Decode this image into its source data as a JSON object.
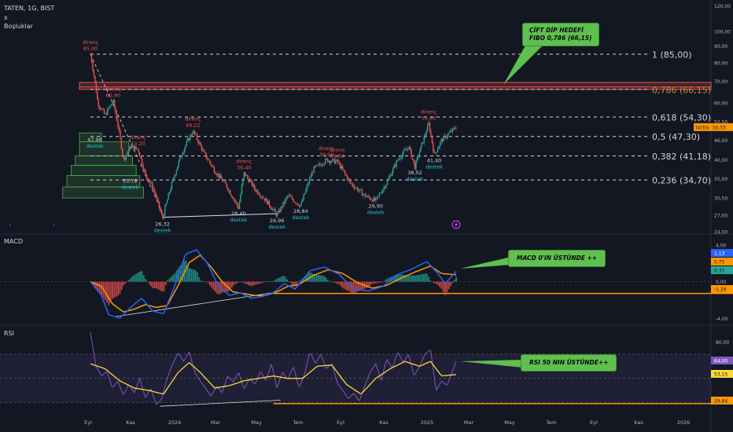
{
  "header": {
    "symbol_line": "TATEN, 1G, BIST",
    "close_x": "x",
    "sub_label": "Boşluklar",
    "macd_label": "MACD",
    "rsi_label": "RSI"
  },
  "colors": {
    "background": "#131722",
    "candle_up": "#26a69a",
    "candle_down": "#ef5350",
    "macd_line": "#2962ff",
    "signal_line": "#ff9800",
    "rsi_line": "#7e57c2",
    "rsi_ma": "#fdd835",
    "callout": "#5fbf4f",
    "support_line": "#e0e0e0"
  },
  "callouts": {
    "fib_target": [
      "ÇİFT DİP HEDEFİ",
      "FIBO 0,786 (66,15)"
    ],
    "macd": "MACD 0'IN ÜSTÜNDE ++",
    "rsi": "RSI 50 NIN ÜSTÜNDE++"
  },
  "chart_data": [
    {
      "type": "candlestick",
      "panel": "price",
      "symbol": "TATEN",
      "timeframe": "1G",
      "exchange": "BIST",
      "last_price": 50.55,
      "last_price_label": "50,55",
      "x_ticks": [
        "Eyl",
        "Kas",
        "2024",
        "Mar",
        "May",
        "Tem",
        "Eyl",
        "Kas",
        "2025",
        "Mar",
        "May",
        "Tem",
        "Eyl",
        "Kas",
        "2026"
      ],
      "y_scale": "log",
      "y_ticks": [
        "120,00",
        "100,00",
        "90,00",
        "80,00",
        "70,00",
        "60,00",
        "52,50",
        "46,00",
        "40,00",
        "35,00",
        "30,50",
        "27,00",
        "24,00"
      ],
      "ylim": [
        24,
        125
      ],
      "fib_levels": [
        {
          "ratio": "1",
          "price": 85.0,
          "label": "1 (85,00)"
        },
        {
          "ratio": "0,786",
          "price": 66.15,
          "label": "0,786 (66,15)"
        },
        {
          "ratio": "0,618",
          "price": 54.3,
          "label": "0,618 (54,30)"
        },
        {
          "ratio": "0,5",
          "price": 47.3,
          "label": "0,5 (47,30)"
        },
        {
          "ratio": "0,382",
          "price": 41.18,
          "label": "0,382 (41,18)"
        },
        {
          "ratio": "0,236",
          "price": 34.7,
          "label": "0,236 (34,70)"
        }
      ],
      "resistance_band": [
        66.15,
        69.5
      ],
      "gap_boxes": [
        45.5,
        41.18,
        38.5,
        35.78,
        33.0,
        30.5
      ],
      "annotations": [
        {
          "kind": "direnc",
          "label": "direnç",
          "value": "85,00",
          "price": 85.0,
          "t": 0.0
        },
        {
          "kind": "direnc",
          "label": "direnç",
          "value": "60,90",
          "price": 60.9,
          "t": 0.062
        },
        {
          "kind": "direnc",
          "label": "direnç",
          "value": "43,20",
          "price": 43.2,
          "t": 0.13
        },
        {
          "kind": "direnc",
          "label": "direnç",
          "value": "49,22",
          "price": 49.22,
          "t": 0.28
        },
        {
          "kind": "direnc",
          "label": "direnç",
          "value": "36,40",
          "price": 36.4,
          "t": 0.42
        },
        {
          "kind": "direnc",
          "label": "direnç",
          "value": "39,98",
          "price": 39.98,
          "t": 0.645
        },
        {
          "kind": "direnc",
          "label": "direnç",
          "value": "39,50",
          "price": 39.5,
          "t": 0.675
        },
        {
          "kind": "direnc",
          "label": "direnç",
          "value": "51,80",
          "price": 51.8,
          "t": 0.925
        },
        {
          "kind": "destek",
          "label": "destek",
          "value": "47,96",
          "price": 47.96,
          "t": 0.012
        },
        {
          "kind": "destek",
          "label": "destek",
          "value": "35,78",
          "price": 35.78,
          "t": 0.108
        },
        {
          "kind": "destek",
          "label": "destek",
          "value": "26,32",
          "price": 26.32,
          "t": 0.197
        },
        {
          "kind": "destek",
          "label": "destek",
          "value": "28,40",
          "price": 28.4,
          "t": 0.405
        },
        {
          "kind": "destek",
          "label": "destek",
          "value": "26,96",
          "price": 26.96,
          "t": 0.51
        },
        {
          "kind": "destek",
          "label": "destek",
          "value": "28,84",
          "price": 28.84,
          "t": 0.575
        },
        {
          "kind": "destek",
          "label": "destek",
          "value": "29,90",
          "price": 29.9,
          "t": 0.78
        },
        {
          "kind": "destek",
          "label": "destek",
          "value": "38,02",
          "price": 38.02,
          "t": 0.887
        },
        {
          "kind": "destek",
          "label": "destek",
          "value": "41,40",
          "price": 41.4,
          "t": 0.94
        }
      ],
      "price_path": [
        [
          0.0,
          85.0
        ],
        [
          0.02,
          60.0
        ],
        [
          0.04,
          55.0
        ],
        [
          0.062,
          60.9
        ],
        [
          0.09,
          40.0
        ],
        [
          0.11,
          44.0
        ],
        [
          0.13,
          43.2
        ],
        [
          0.15,
          36.0
        ],
        [
          0.17,
          33.0
        ],
        [
          0.197,
          26.32
        ],
        [
          0.22,
          33.0
        ],
        [
          0.25,
          42.0
        ],
        [
          0.28,
          49.22
        ],
        [
          0.31,
          42.0
        ],
        [
          0.34,
          37.0
        ],
        [
          0.37,
          33.5
        ],
        [
          0.405,
          28.4
        ],
        [
          0.42,
          36.4
        ],
        [
          0.45,
          32.5
        ],
        [
          0.48,
          30.0
        ],
        [
          0.51,
          26.96
        ],
        [
          0.54,
          31.0
        ],
        [
          0.575,
          28.84
        ],
        [
          0.61,
          37.5
        ],
        [
          0.645,
          39.98
        ],
        [
          0.675,
          39.5
        ],
        [
          0.71,
          34.0
        ],
        [
          0.75,
          31.0
        ],
        [
          0.78,
          29.9
        ],
        [
          0.81,
          34.0
        ],
        [
          0.84,
          40.0
        ],
        [
          0.87,
          44.0
        ],
        [
          0.887,
          38.02
        ],
        [
          0.91,
          46.0
        ],
        [
          0.925,
          51.8
        ],
        [
          0.94,
          41.4
        ],
        [
          0.96,
          46.0
        ],
        [
          1.0,
          50.55
        ]
      ]
    },
    {
      "type": "line",
      "panel": "macd",
      "title": "MACD",
      "y_ticks": [
        "4,00",
        "0,00",
        "-4,00"
      ],
      "ylim": [
        -4.4,
        4.6
      ],
      "last_values": {
        "macd": 1.13,
        "signal": 0.75,
        "histogram": 0.37,
        "level": -1.28
      },
      "last_labels": {
        "macd": "1,13",
        "signal": "0,75",
        "histogram": "0,37",
        "level": "-1,28"
      },
      "horizontal_level": -1.28,
      "macd_path": [
        [
          0.0,
          0.0
        ],
        [
          0.03,
          -1.5
        ],
        [
          0.05,
          -3.6
        ],
        [
          0.08,
          -4.0
        ],
        [
          0.11,
          -2.8
        ],
        [
          0.14,
          -1.8
        ],
        [
          0.17,
          -3.2
        ],
        [
          0.2,
          -3.5
        ],
        [
          0.23,
          -0.5
        ],
        [
          0.26,
          3.0
        ],
        [
          0.29,
          3.5
        ],
        [
          0.32,
          2.0
        ],
        [
          0.35,
          -0.5
        ],
        [
          0.38,
          -1.5
        ],
        [
          0.41,
          -1.2
        ],
        [
          0.44,
          -1.8
        ],
        [
          0.47,
          -1.6
        ],
        [
          0.5,
          -1.2
        ],
        [
          0.53,
          -0.2
        ],
        [
          0.56,
          -0.8
        ],
        [
          0.6,
          1.2
        ],
        [
          0.64,
          1.6
        ],
        [
          0.68,
          0.8
        ],
        [
          0.72,
          -0.8
        ],
        [
          0.76,
          -1.0
        ],
        [
          0.8,
          -0.5
        ],
        [
          0.84,
          0.8
        ],
        [
          0.88,
          1.4
        ],
        [
          0.92,
          2.2
        ],
        [
          0.95,
          0.9
        ],
        [
          0.97,
          -0.2
        ],
        [
          1.0,
          1.13
        ]
      ],
      "signal_path": [
        [
          0.0,
          0.0
        ],
        [
          0.03,
          -0.5
        ],
        [
          0.06,
          -2.4
        ],
        [
          0.09,
          -3.3
        ],
        [
          0.12,
          -3.0
        ],
        [
          0.15,
          -2.5
        ],
        [
          0.18,
          -2.8
        ],
        [
          0.21,
          -2.6
        ],
        [
          0.24,
          -0.4
        ],
        [
          0.27,
          2.1
        ],
        [
          0.3,
          2.9
        ],
        [
          0.33,
          1.6
        ],
        [
          0.36,
          0.0
        ],
        [
          0.39,
          -1.1
        ],
        [
          0.42,
          -1.3
        ],
        [
          0.45,
          -1.5
        ],
        [
          0.48,
          -1.5
        ],
        [
          0.51,
          -1.1
        ],
        [
          0.54,
          -0.5
        ],
        [
          0.57,
          -0.3
        ],
        [
          0.61,
          0.7
        ],
        [
          0.65,
          1.3
        ],
        [
          0.69,
          0.9
        ],
        [
          0.73,
          -0.1
        ],
        [
          0.77,
          -0.7
        ],
        [
          0.81,
          -0.4
        ],
        [
          0.85,
          0.4
        ],
        [
          0.89,
          1.1
        ],
        [
          0.93,
          1.7
        ],
        [
          0.96,
          0.9
        ],
        [
          1.0,
          0.75
        ]
      ]
    },
    {
      "type": "line",
      "panel": "rsi",
      "title": "RSI",
      "y_ticks": [
        "80,00",
        "53,15",
        "29,84"
      ],
      "ylim": [
        20,
        90
      ],
      "band": [
        30,
        70
      ],
      "last_values": {
        "rsi": 64.0,
        "rsi_ma": 53.15,
        "level": 29.84
      },
      "last_labels": {
        "rsi": "64,00",
        "rsi_ma": "53,15",
        "level": "29,84"
      },
      "horizontal_level": 29.84,
      "rsi_path": [
        [
          0.0,
          88.0
        ],
        [
          0.015,
          60.0
        ],
        [
          0.03,
          52.0
        ],
        [
          0.045,
          56.0
        ],
        [
          0.06,
          42.0
        ],
        [
          0.075,
          48.0
        ],
        [
          0.09,
          36.0
        ],
        [
          0.105,
          45.0
        ],
        [
          0.12,
          38.0
        ],
        [
          0.135,
          50.0
        ],
        [
          0.15,
          34.0
        ],
        [
          0.165,
          42.0
        ],
        [
          0.18,
          28.0
        ],
        [
          0.195,
          33.0
        ],
        [
          0.21,
          50.0
        ],
        [
          0.225,
          62.0
        ],
        [
          0.24,
          71.0
        ],
        [
          0.255,
          64.0
        ],
        [
          0.27,
          72.0
        ],
        [
          0.285,
          55.0
        ],
        [
          0.3,
          48.0
        ],
        [
          0.315,
          42.0
        ],
        [
          0.33,
          35.0
        ],
        [
          0.345,
          44.0
        ],
        [
          0.36,
          38.0
        ],
        [
          0.375,
          52.0
        ],
        [
          0.39,
          47.0
        ],
        [
          0.405,
          55.0
        ],
        [
          0.42,
          41.0
        ],
        [
          0.435,
          50.0
        ],
        [
          0.45,
          45.0
        ],
        [
          0.465,
          56.0
        ],
        [
          0.48,
          48.0
        ],
        [
          0.495,
          62.0
        ],
        [
          0.51,
          42.0
        ],
        [
          0.525,
          55.0
        ],
        [
          0.54,
          49.0
        ],
        [
          0.555,
          60.0
        ],
        [
          0.57,
          42.0
        ],
        [
          0.585,
          53.0
        ],
        [
          0.6,
          72.0
        ],
        [
          0.615,
          62.0
        ],
        [
          0.63,
          70.0
        ],
        [
          0.645,
          58.0
        ],
        [
          0.66,
          62.0
        ],
        [
          0.675,
          46.0
        ],
        [
          0.69,
          40.0
        ],
        [
          0.705,
          33.0
        ],
        [
          0.72,
          38.0
        ],
        [
          0.735,
          31.0
        ],
        [
          0.75,
          44.0
        ],
        [
          0.765,
          55.0
        ],
        [
          0.78,
          62.0
        ],
        [
          0.795,
          48.0
        ],
        [
          0.81,
          66.0
        ],
        [
          0.825,
          58.0
        ],
        [
          0.84,
          72.0
        ],
        [
          0.855,
          63.0
        ],
        [
          0.87,
          70.0
        ],
        [
          0.885,
          52.0
        ],
        [
          0.9,
          60.0
        ],
        [
          0.915,
          70.0
        ],
        [
          0.93,
          74.0
        ],
        [
          0.945,
          40.0
        ],
        [
          0.96,
          48.0
        ],
        [
          0.975,
          44.0
        ],
        [
          1.0,
          64.0
        ]
      ],
      "rsi_ma_path": [
        [
          0.0,
          62.0
        ],
        [
          0.04,
          58.0
        ],
        [
          0.08,
          48.0
        ],
        [
          0.12,
          42.0
        ],
        [
          0.16,
          40.0
        ],
        [
          0.2,
          37.0
        ],
        [
          0.24,
          55.0
        ],
        [
          0.27,
          63.0
        ],
        [
          0.3,
          55.0
        ],
        [
          0.34,
          42.0
        ],
        [
          0.38,
          44.0
        ],
        [
          0.42,
          48.0
        ],
        [
          0.46,
          50.0
        ],
        [
          0.5,
          52.0
        ],
        [
          0.54,
          50.0
        ],
        [
          0.58,
          50.0
        ],
        [
          0.62,
          60.0
        ],
        [
          0.66,
          61.0
        ],
        [
          0.7,
          45.0
        ],
        [
          0.74,
          37.0
        ],
        [
          0.78,
          50.0
        ],
        [
          0.82,
          58.0
        ],
        [
          0.86,
          64.0
        ],
        [
          0.9,
          60.0
        ],
        [
          0.93,
          64.0
        ],
        [
          0.96,
          52.0
        ],
        [
          1.0,
          53.15
        ]
      ]
    }
  ]
}
